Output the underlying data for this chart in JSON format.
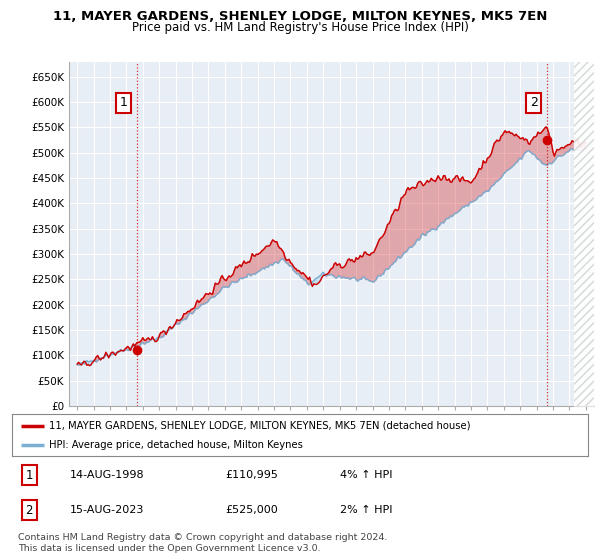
{
  "title_line1": "11, MAYER GARDENS, SHENLEY LODGE, MILTON KEYNES, MK5 7EN",
  "title_line2": "Price paid vs. HM Land Registry's House Price Index (HPI)",
  "ylim": [
    0,
    680000
  ],
  "yticks": [
    0,
    50000,
    100000,
    150000,
    200000,
    250000,
    300000,
    350000,
    400000,
    450000,
    500000,
    550000,
    600000,
    650000
  ],
  "ytick_labels": [
    "£0",
    "£50K",
    "£100K",
    "£150K",
    "£200K",
    "£250K",
    "£300K",
    "£350K",
    "£400K",
    "£450K",
    "£500K",
    "£550K",
    "£600K",
    "£650K"
  ],
  "legend_line1": "11, MAYER GARDENS, SHENLEY LODGE, MILTON KEYNES, MK5 7EN (detached house)",
  "legend_line2": "HPI: Average price, detached house, Milton Keynes",
  "annotation1_label": "1",
  "annotation1_date": "14-AUG-1998",
  "annotation1_price": "£110,995",
  "annotation1_hpi": "4% ↑ HPI",
  "annotation2_label": "2",
  "annotation2_date": "15-AUG-2023",
  "annotation2_price": "£525,000",
  "annotation2_hpi": "2% ↑ HPI",
  "footer": "Contains HM Land Registry data © Crown copyright and database right 2024.\nThis data is licensed under the Open Government Licence v3.0.",
  "line_color_property": "#cc0000",
  "line_color_hpi": "#7bafd4",
  "background_color": "#ffffff",
  "plot_bg_color": "#e8eef5",
  "grid_color": "#ffffff",
  "hatch_color": "#cccccc",
  "sale1_x": 1998.62,
  "sale1_y": 110995,
  "sale2_x": 2023.62,
  "sale2_y": 525000,
  "xmin": 1994.5,
  "xmax": 2026.5
}
